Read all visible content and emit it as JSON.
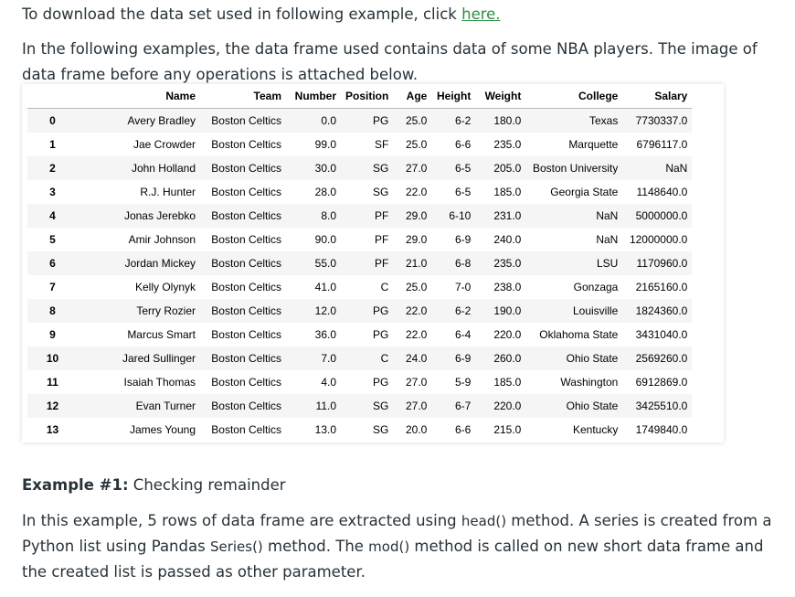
{
  "intro": {
    "download_text": "To download the data set used in following example, click ",
    "download_link": "here.",
    "description": "In the following examples, the data frame used contains data of some NBA players. The image of data frame before any operations is attached below."
  },
  "table": {
    "columns": [
      "",
      "Name",
      "Team",
      "Number",
      "Position",
      "Age",
      "Height",
      "Weight",
      "College",
      "Salary"
    ],
    "rows": [
      [
        "0",
        "Avery Bradley",
        "Boston Celtics",
        "0.0",
        "PG",
        "25.0",
        "6-2",
        "180.0",
        "Texas",
        "7730337.0"
      ],
      [
        "1",
        "Jae Crowder",
        "Boston Celtics",
        "99.0",
        "SF",
        "25.0",
        "6-6",
        "235.0",
        "Marquette",
        "6796117.0"
      ],
      [
        "2",
        "John Holland",
        "Boston Celtics",
        "30.0",
        "SG",
        "27.0",
        "6-5",
        "205.0",
        "Boston University",
        "NaN"
      ],
      [
        "3",
        "R.J. Hunter",
        "Boston Celtics",
        "28.0",
        "SG",
        "22.0",
        "6-5",
        "185.0",
        "Georgia State",
        "1148640.0"
      ],
      [
        "4",
        "Jonas Jerebko",
        "Boston Celtics",
        "8.0",
        "PF",
        "29.0",
        "6-10",
        "231.0",
        "NaN",
        "5000000.0"
      ],
      [
        "5",
        "Amir Johnson",
        "Boston Celtics",
        "90.0",
        "PF",
        "29.0",
        "6-9",
        "240.0",
        "NaN",
        "12000000.0"
      ],
      [
        "6",
        "Jordan Mickey",
        "Boston Celtics",
        "55.0",
        "PF",
        "21.0",
        "6-8",
        "235.0",
        "LSU",
        "1170960.0"
      ],
      [
        "7",
        "Kelly Olynyk",
        "Boston Celtics",
        "41.0",
        "C",
        "25.0",
        "7-0",
        "238.0",
        "Gonzaga",
        "2165160.0"
      ],
      [
        "8",
        "Terry Rozier",
        "Boston Celtics",
        "12.0",
        "PG",
        "22.0",
        "6-2",
        "190.0",
        "Louisville",
        "1824360.0"
      ],
      [
        "9",
        "Marcus Smart",
        "Boston Celtics",
        "36.0",
        "PG",
        "22.0",
        "6-4",
        "220.0",
        "Oklahoma State",
        "3431040.0"
      ],
      [
        "10",
        "Jared Sullinger",
        "Boston Celtics",
        "7.0",
        "C",
        "24.0",
        "6-9",
        "260.0",
        "Ohio State",
        "2569260.0"
      ],
      [
        "11",
        "Isaiah Thomas",
        "Boston Celtics",
        "4.0",
        "PG",
        "27.0",
        "5-9",
        "185.0",
        "Washington",
        "6912869.0"
      ],
      [
        "12",
        "Evan Turner",
        "Boston Celtics",
        "11.0",
        "SG",
        "27.0",
        "6-7",
        "220.0",
        "Ohio State",
        "3425510.0"
      ],
      [
        "13",
        "James Young",
        "Boston Celtics",
        "13.0",
        "SG",
        "20.0",
        "6-6",
        "215.0",
        "Kentucky",
        "1749840.0"
      ]
    ]
  },
  "example": {
    "heading_bold": "Example #1:",
    "heading_rest": " Checking remainder",
    "p_a": "In this example, 5 rows of data frame are extracted using ",
    "code_head": "head()",
    "p_b": " method. A series is created from a Python list using Pandas ",
    "code_series": "Series()",
    "p_c": " method. The ",
    "code_mod": "mod()",
    "p_d": " method is called on new short data frame and the created list is passed as other parameter."
  }
}
